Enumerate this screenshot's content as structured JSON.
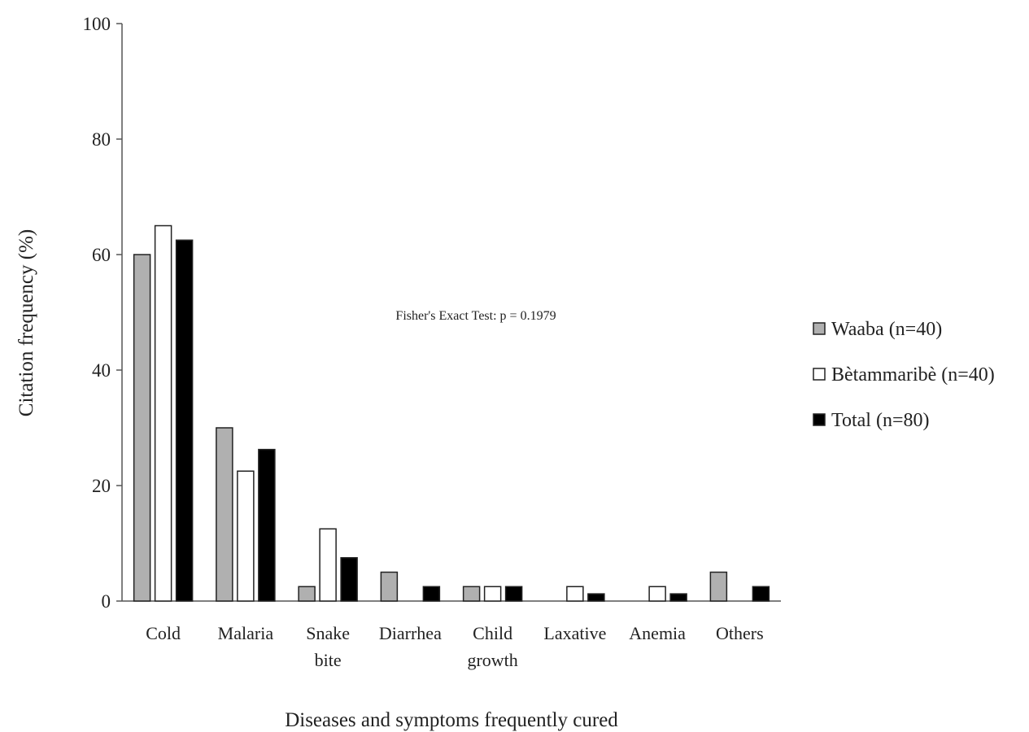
{
  "chart_data": {
    "type": "bar",
    "xlabel": "Diseases and symptoms frequently cured",
    "ylabel": "Citation frequency (%)",
    "ylim": [
      0,
      100
    ],
    "yticks": [
      0,
      20,
      40,
      60,
      80,
      100
    ],
    "categories": [
      [
        "Cold"
      ],
      [
        "Malaria"
      ],
      [
        "Snake",
        "bite"
      ],
      [
        "Diarrhea"
      ],
      [
        "Child",
        "growth"
      ],
      [
        "Laxative"
      ],
      [
        "Anemia"
      ],
      [
        "Others"
      ]
    ],
    "series": [
      {
        "name": "Waaba (n=40)",
        "color": "#b0b0b0",
        "values": [
          60,
          30,
          2.5,
          5,
          2.5,
          0,
          0,
          5
        ]
      },
      {
        "name": "Bètammaribè (n=40)",
        "color": "#ffffff",
        "values": [
          65,
          22.5,
          12.5,
          0,
          2.5,
          2.5,
          2.5,
          0
        ]
      },
      {
        "name": "Total (n=80)",
        "color": "#000000",
        "values": [
          62.5,
          26.25,
          7.5,
          2.5,
          2.5,
          1.25,
          1.25,
          2.5
        ]
      }
    ],
    "annotation": "Fisher's Exact Test: p = 0.1979",
    "legend_position": "right",
    "grid": false
  }
}
